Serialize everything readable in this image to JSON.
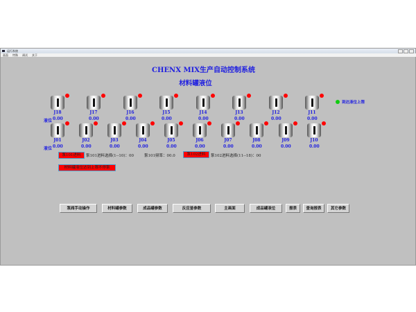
{
  "window": {
    "title": "运行系统",
    "menu": [
      "画面",
      "特殊",
      "调试",
      "关于"
    ]
  },
  "header": {
    "title": "CHENX MIX生产自动控制系统",
    "subtitle": "材料罐液位"
  },
  "legend": {
    "label": "到达液位上限",
    "color": "#11cc11"
  },
  "level_label": "液位",
  "tanks_row1": [
    {
      "id": "J18",
      "value": "0.00"
    },
    {
      "id": "J17",
      "value": "0.00"
    },
    {
      "id": "J16",
      "value": "0.00"
    },
    {
      "id": "J15",
      "value": "0.00"
    },
    {
      "id": "J14",
      "value": "0.00"
    },
    {
      "id": "J13",
      "value": "0.00"
    },
    {
      "id": "J12",
      "value": "0.00"
    },
    {
      "id": "J11",
      "value": "0.00"
    }
  ],
  "tanks_row2": [
    {
      "id": "J01",
      "value": "0.00"
    },
    {
      "id": "J02",
      "value": "0.00"
    },
    {
      "id": "J03",
      "value": "0.00"
    },
    {
      "id": "J04",
      "value": "0.00"
    },
    {
      "id": "J05",
      "value": "0.00"
    },
    {
      "id": "J06",
      "value": "0.00"
    },
    {
      "id": "J07",
      "value": "0.00"
    },
    {
      "id": "J08",
      "value": "0.00"
    },
    {
      "id": "J09",
      "value": "0.00"
    },
    {
      "id": "J10",
      "value": "0.00"
    }
  ],
  "pumps": {
    "pump101_button": "泵101进料",
    "pump101_select": "泵101进料选择(1--10)：00",
    "pump101_freq": "泵101频率：00.0",
    "pump102_button": "泵102进料",
    "pump102_select": "泵102进料选择(11--18)：00",
    "alarm_button": "材料罐液位达到上限不停泵"
  },
  "nav_buttons": [
    "泵阀手动操作",
    "材料罐参数",
    "成品罐参数",
    "反应釜参数",
    "主画面",
    "成品罐液位",
    "报表",
    "查询报表",
    "其它参数"
  ],
  "colors": {
    "alarm": "#ff0000",
    "text": "#2020e0",
    "background": "#c0c0c0"
  }
}
